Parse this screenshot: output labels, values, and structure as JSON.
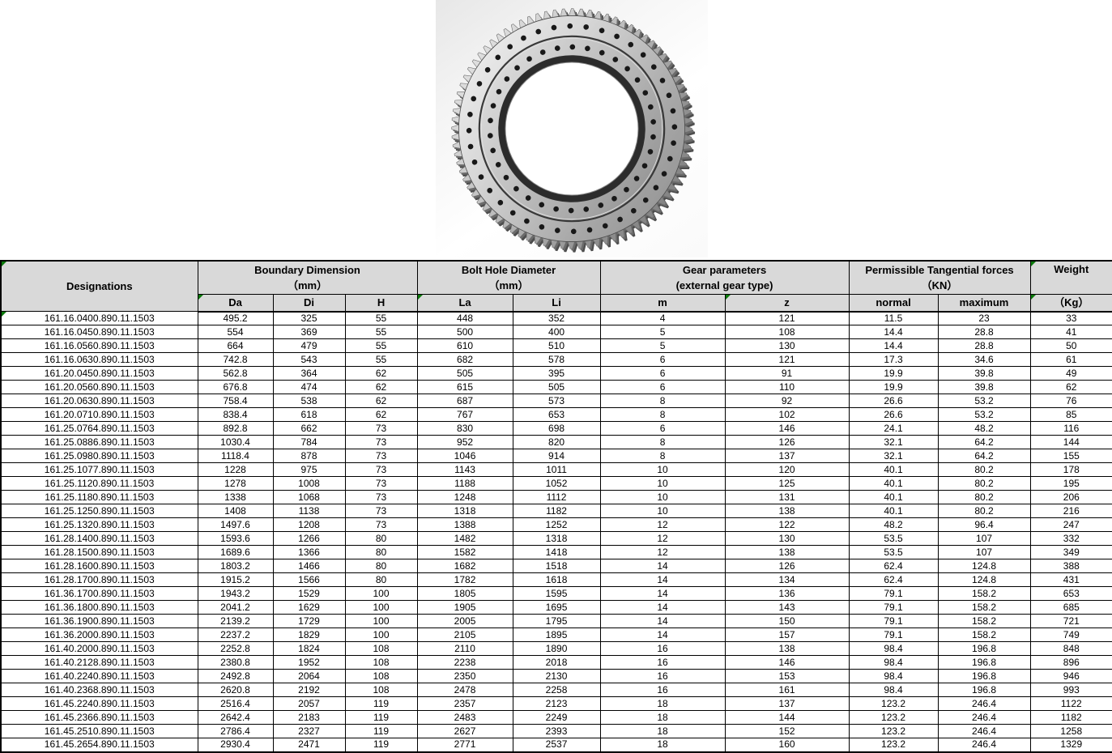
{
  "photo": {
    "label": "slewing-ring-bearing-external-gear-photo"
  },
  "colors": {
    "header_bg": "#d9d9d9",
    "border": "#000000",
    "marker_green": "#0b7a0b"
  },
  "table": {
    "header": {
      "designations": "Designations",
      "boundary_group": "Boundary Dimension",
      "boundary_unit": "（mm）",
      "bolt_group": "Bolt Hole Diameter",
      "bolt_unit": "（mm）",
      "gear_group": "Gear parameters",
      "gear_sub": "(external gear type)",
      "forces_group": "Permissible Tangential forces",
      "forces_unit": "（KN）",
      "weight_group": "Weight",
      "sub": {
        "da": "Da",
        "di": "Di",
        "h": "H",
        "la": "La",
        "li": "Li",
        "m": "m",
        "z": "z",
        "normal": "normal",
        "maximum": "maximum",
        "weight_unit": "（Kg）"
      }
    },
    "rows": [
      [
        "161.16.0400.890.11.1503",
        "495.2",
        "325",
        "55",
        "448",
        "352",
        "4",
        "121",
        "11.5",
        "23",
        "33"
      ],
      [
        "161.16.0450.890.11.1503",
        "554",
        "369",
        "55",
        "500",
        "400",
        "5",
        "108",
        "14.4",
        "28.8",
        "41"
      ],
      [
        "161.16.0560.890.11.1503",
        "664",
        "479",
        "55",
        "610",
        "510",
        "5",
        "130",
        "14.4",
        "28.8",
        "50"
      ],
      [
        "161.16.0630.890.11.1503",
        "742.8",
        "543",
        "55",
        "682",
        "578",
        "6",
        "121",
        "17.3",
        "34.6",
        "61"
      ],
      [
        "161.20.0450.890.11.1503",
        "562.8",
        "364",
        "62",
        "505",
        "395",
        "6",
        "91",
        "19.9",
        "39.8",
        "49"
      ],
      [
        "161.20.0560.890.11.1503",
        "676.8",
        "474",
        "62",
        "615",
        "505",
        "6",
        "110",
        "19.9",
        "39.8",
        "62"
      ],
      [
        "161.20.0630.890.11.1503",
        "758.4",
        "538",
        "62",
        "687",
        "573",
        "8",
        "92",
        "26.6",
        "53.2",
        "76"
      ],
      [
        "161.20.0710.890.11.1503",
        "838.4",
        "618",
        "62",
        "767",
        "653",
        "8",
        "102",
        "26.6",
        "53.2",
        "85"
      ],
      [
        "161.25.0764.890.11.1503",
        "892.8",
        "662",
        "73",
        "830",
        "698",
        "6",
        "146",
        "24.1",
        "48.2",
        "116"
      ],
      [
        "161.25.0886.890.11.1503",
        "1030.4",
        "784",
        "73",
        "952",
        "820",
        "8",
        "126",
        "32.1",
        "64.2",
        "144"
      ],
      [
        "161.25.0980.890.11.1503",
        "1118.4",
        "878",
        "73",
        "1046",
        "914",
        "8",
        "137",
        "32.1",
        "64.2",
        "155"
      ],
      [
        "161.25.1077.890.11.1503",
        "1228",
        "975",
        "73",
        "1143",
        "1011",
        "10",
        "120",
        "40.1",
        "80.2",
        "178"
      ],
      [
        "161.25.1120.890.11.1503",
        "1278",
        "1008",
        "73",
        "1188",
        "1052",
        "10",
        "125",
        "40.1",
        "80.2",
        "195"
      ],
      [
        "161.25.1180.890.11.1503",
        "1338",
        "1068",
        "73",
        "1248",
        "1112",
        "10",
        "131",
        "40.1",
        "80.2",
        "206"
      ],
      [
        "161.25.1250.890.11.1503",
        "1408",
        "1138",
        "73",
        "1318",
        "1182",
        "10",
        "138",
        "40.1",
        "80.2",
        "216"
      ],
      [
        "161.25.1320.890.11.1503",
        "1497.6",
        "1208",
        "73",
        "1388",
        "1252",
        "12",
        "122",
        "48.2",
        "96.4",
        "247"
      ],
      [
        "161.28.1400.890.11.1503",
        "1593.6",
        "1266",
        "80",
        "1482",
        "1318",
        "12",
        "130",
        "53.5",
        "107",
        "332"
      ],
      [
        "161.28.1500.890.11.1503",
        "1689.6",
        "1366",
        "80",
        "1582",
        "1418",
        "12",
        "138",
        "53.5",
        "107",
        "349"
      ],
      [
        "161.28.1600.890.11.1503",
        "1803.2",
        "1466",
        "80",
        "1682",
        "1518",
        "14",
        "126",
        "62.4",
        "124.8",
        "388"
      ],
      [
        "161.28.1700.890.11.1503",
        "1915.2",
        "1566",
        "80",
        "1782",
        "1618",
        "14",
        "134",
        "62.4",
        "124.8",
        "431"
      ],
      [
        "161.36.1700.890.11.1503",
        "1943.2",
        "1529",
        "100",
        "1805",
        "1595",
        "14",
        "136",
        "79.1",
        "158.2",
        "653"
      ],
      [
        "161.36.1800.890.11.1503",
        "2041.2",
        "1629",
        "100",
        "1905",
        "1695",
        "14",
        "143",
        "79.1",
        "158.2",
        "685"
      ],
      [
        "161.36.1900.890.11.1503",
        "2139.2",
        "1729",
        "100",
        "2005",
        "1795",
        "14",
        "150",
        "79.1",
        "158.2",
        "721"
      ],
      [
        "161.36.2000.890.11.1503",
        "2237.2",
        "1829",
        "100",
        "2105",
        "1895",
        "14",
        "157",
        "79.1",
        "158.2",
        "749"
      ],
      [
        "161.40.2000.890.11.1503",
        "2252.8",
        "1824",
        "108",
        "2110",
        "1890",
        "16",
        "138",
        "98.4",
        "196.8",
        "848"
      ],
      [
        "161.40.2128.890.11.1503",
        "2380.8",
        "1952",
        "108",
        "2238",
        "2018",
        "16",
        "146",
        "98.4",
        "196.8",
        "896"
      ],
      [
        "161.40.2240.890.11.1503",
        "2492.8",
        "2064",
        "108",
        "2350",
        "2130",
        "16",
        "153",
        "98.4",
        "196.8",
        "946"
      ],
      [
        "161.40.2368.890.11.1503",
        "2620.8",
        "2192",
        "108",
        "2478",
        "2258",
        "16",
        "161",
        "98.4",
        "196.8",
        "993"
      ],
      [
        "161.45.2240.890.11.1503",
        "2516.4",
        "2057",
        "119",
        "2357",
        "2123",
        "18",
        "137",
        "123.2",
        "246.4",
        "1122"
      ],
      [
        "161.45.2366.890.11.1503",
        "2642.4",
        "2183",
        "119",
        "2483",
        "2249",
        "18",
        "144",
        "123.2",
        "246.4",
        "1182"
      ],
      [
        "161.45.2510.890.11.1503",
        "2786.4",
        "2327",
        "119",
        "2627",
        "2393",
        "18",
        "152",
        "123.2",
        "246.4",
        "1258"
      ],
      [
        "161.45.2654.890.11.1503",
        "2930.4",
        "2471",
        "119",
        "2771",
        "2537",
        "18",
        "160",
        "123.2",
        "246.4",
        "1329"
      ]
    ]
  }
}
